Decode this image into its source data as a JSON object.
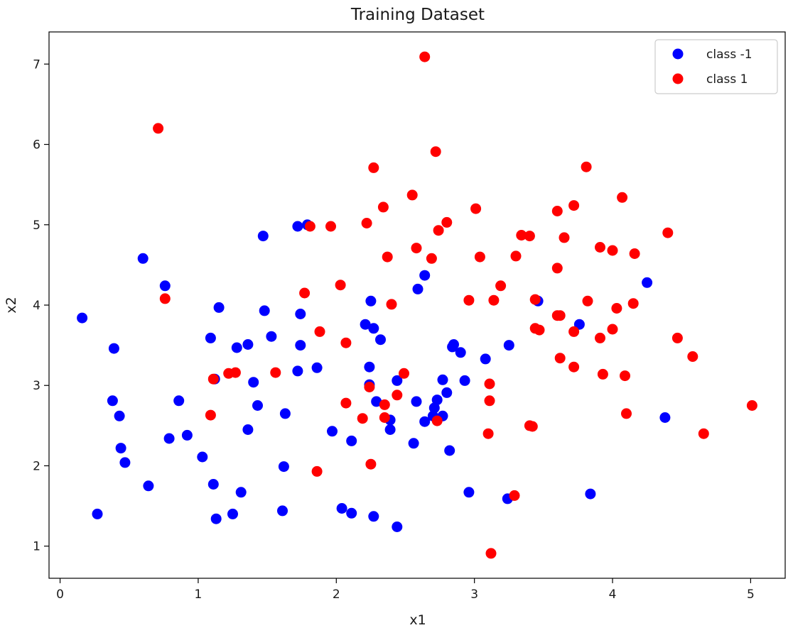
{
  "chart_data": {
    "type": "scatter",
    "title": "Training Dataset",
    "xlabel": "x1",
    "ylabel": "x2",
    "xlim": [
      -0.08,
      5.25
    ],
    "ylim": [
      0.6,
      7.4
    ],
    "xticks": [
      "0",
      "1",
      "2",
      "3",
      "4",
      "5"
    ],
    "yticks": [
      "1",
      "2",
      "3",
      "4",
      "5",
      "6",
      "7"
    ],
    "grid": false,
    "legend_position": "top-right",
    "series": [
      {
        "name": "class -1",
        "color": "#0000ff",
        "points": [
          [
            0.16,
            3.84
          ],
          [
            0.27,
            1.4
          ],
          [
            0.38,
            2.81
          ],
          [
            0.39,
            3.46
          ],
          [
            0.43,
            2.62
          ],
          [
            0.44,
            2.22
          ],
          [
            0.47,
            2.04
          ],
          [
            0.6,
            4.58
          ],
          [
            0.64,
            1.75
          ],
          [
            0.76,
            4.24
          ],
          [
            0.79,
            2.34
          ],
          [
            0.86,
            2.81
          ],
          [
            0.92,
            2.38
          ],
          [
            1.03,
            2.11
          ],
          [
            1.09,
            3.59
          ],
          [
            1.11,
            1.77
          ],
          [
            1.12,
            3.08
          ],
          [
            1.13,
            1.34
          ],
          [
            1.15,
            3.97
          ],
          [
            1.25,
            1.4
          ],
          [
            1.28,
            3.47
          ],
          [
            1.31,
            1.67
          ],
          [
            1.36,
            2.45
          ],
          [
            1.36,
            3.51
          ],
          [
            1.4,
            3.04
          ],
          [
            1.43,
            2.75
          ],
          [
            1.47,
            4.86
          ],
          [
            1.48,
            3.93
          ],
          [
            1.53,
            3.61
          ],
          [
            1.61,
            1.44
          ],
          [
            1.62,
            1.99
          ],
          [
            1.63,
            2.65
          ],
          [
            1.72,
            3.18
          ],
          [
            1.72,
            4.98
          ],
          [
            1.74,
            3.89
          ],
          [
            1.74,
            3.5
          ],
          [
            1.79,
            5.0
          ],
          [
            1.86,
            3.22
          ],
          [
            1.97,
            2.43
          ],
          [
            2.04,
            1.47
          ],
          [
            2.11,
            2.31
          ],
          [
            2.11,
            1.41
          ],
          [
            2.21,
            3.76
          ],
          [
            2.24,
            3.23
          ],
          [
            2.24,
            3.01
          ],
          [
            2.25,
            4.05
          ],
          [
            2.27,
            3.71
          ],
          [
            2.27,
            1.37
          ],
          [
            2.29,
            2.8
          ],
          [
            2.32,
            3.57
          ],
          [
            2.39,
            2.57
          ],
          [
            2.39,
            2.45
          ],
          [
            2.44,
            1.24
          ],
          [
            2.44,
            3.06
          ],
          [
            2.56,
            2.28
          ],
          [
            2.58,
            2.8
          ],
          [
            2.59,
            4.2
          ],
          [
            2.64,
            4.37
          ],
          [
            2.64,
            2.55
          ],
          [
            2.7,
            2.62
          ],
          [
            2.71,
            2.72
          ],
          [
            2.73,
            2.82
          ],
          [
            2.77,
            3.07
          ],
          [
            2.77,
            2.62
          ],
          [
            2.8,
            2.91
          ],
          [
            2.82,
            2.19
          ],
          [
            2.84,
            3.48
          ],
          [
            2.85,
            3.51
          ],
          [
            2.9,
            3.41
          ],
          [
            2.93,
            3.06
          ],
          [
            2.96,
            1.67
          ],
          [
            3.08,
            3.33
          ],
          [
            3.24,
            1.59
          ],
          [
            3.25,
            3.5
          ],
          [
            3.46,
            4.05
          ],
          [
            3.76,
            3.76
          ],
          [
            3.84,
            1.65
          ],
          [
            4.25,
            4.28
          ],
          [
            4.38,
            2.6
          ]
        ]
      },
      {
        "name": "class 1",
        "color": "#ff0000",
        "points": [
          [
            0.71,
            6.2
          ],
          [
            0.76,
            4.08
          ],
          [
            1.09,
            2.63
          ],
          [
            1.11,
            3.08
          ],
          [
            1.22,
            3.15
          ],
          [
            1.27,
            3.16
          ],
          [
            1.56,
            3.16
          ],
          [
            1.77,
            4.15
          ],
          [
            1.81,
            4.98
          ],
          [
            1.86,
            1.93
          ],
          [
            1.88,
            3.67
          ],
          [
            1.96,
            4.98
          ],
          [
            2.03,
            4.25
          ],
          [
            2.07,
            3.53
          ],
          [
            2.07,
            2.78
          ],
          [
            2.19,
            2.59
          ],
          [
            2.22,
            5.02
          ],
          [
            2.24,
            2.98
          ],
          [
            2.25,
            2.02
          ],
          [
            2.27,
            5.71
          ],
          [
            2.34,
            5.22
          ],
          [
            2.35,
            2.76
          ],
          [
            2.35,
            2.6
          ],
          [
            2.37,
            4.6
          ],
          [
            2.4,
            4.01
          ],
          [
            2.44,
            2.88
          ],
          [
            2.49,
            3.15
          ],
          [
            2.55,
            5.37
          ],
          [
            2.58,
            4.71
          ],
          [
            2.64,
            7.09
          ],
          [
            2.69,
            4.58
          ],
          [
            2.72,
            5.91
          ],
          [
            2.73,
            2.56
          ],
          [
            2.74,
            4.93
          ],
          [
            2.8,
            5.03
          ],
          [
            2.96,
            4.06
          ],
          [
            3.01,
            5.2
          ],
          [
            3.04,
            4.6
          ],
          [
            3.1,
            2.4
          ],
          [
            3.11,
            3.02
          ],
          [
            3.11,
            2.81
          ],
          [
            3.12,
            0.91
          ],
          [
            3.14,
            4.06
          ],
          [
            3.19,
            4.24
          ],
          [
            3.29,
            1.63
          ],
          [
            3.3,
            4.61
          ],
          [
            3.34,
            4.87
          ],
          [
            3.4,
            2.5
          ],
          [
            3.4,
            4.86
          ],
          [
            3.42,
            2.49
          ],
          [
            3.44,
            4.07
          ],
          [
            3.44,
            3.71
          ],
          [
            3.47,
            3.69
          ],
          [
            3.6,
            3.87
          ],
          [
            3.6,
            4.46
          ],
          [
            3.6,
            5.17
          ],
          [
            3.62,
            3.87
          ],
          [
            3.62,
            3.34
          ],
          [
            3.65,
            4.84
          ],
          [
            3.72,
            5.24
          ],
          [
            3.72,
            3.67
          ],
          [
            3.72,
            3.23
          ],
          [
            3.81,
            5.72
          ],
          [
            3.82,
            4.05
          ],
          [
            3.91,
            4.72
          ],
          [
            3.91,
            3.59
          ],
          [
            3.93,
            3.14
          ],
          [
            4.0,
            4.68
          ],
          [
            4.0,
            3.7
          ],
          [
            4.03,
            3.96
          ],
          [
            4.07,
            5.34
          ],
          [
            4.09,
            3.12
          ],
          [
            4.1,
            2.65
          ],
          [
            4.15,
            4.02
          ],
          [
            4.16,
            4.64
          ],
          [
            4.4,
            4.9
          ],
          [
            4.47,
            3.59
          ],
          [
            4.58,
            3.36
          ],
          [
            4.66,
            2.4
          ],
          [
            5.01,
            2.75
          ]
        ]
      }
    ]
  }
}
